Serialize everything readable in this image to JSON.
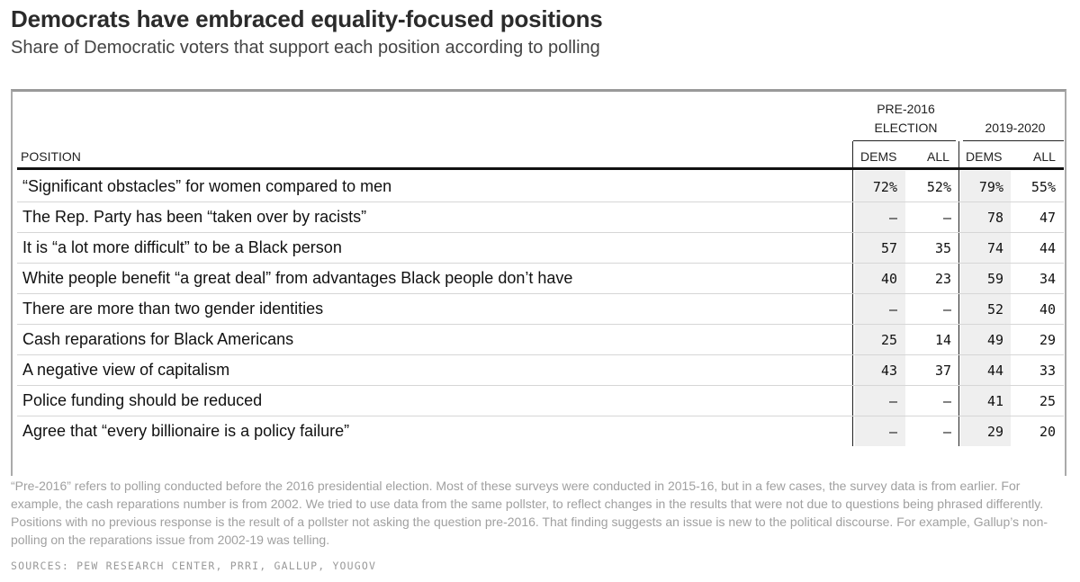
{
  "chart_data": {
    "type": "table",
    "title": "Democrats have embraced equality-focused positions",
    "subtitle": "Share of Democratic voters that support each position according to polling",
    "position_header": "POSITION",
    "groups": [
      {
        "label_line1": "PRE-2016",
        "label_line2": "ELECTION",
        "columns": [
          "DEMS",
          "ALL"
        ]
      },
      {
        "label_line1": "",
        "label_line2": "2019-2020",
        "columns": [
          "DEMS",
          "ALL"
        ]
      }
    ],
    "rows": [
      {
        "position": "“Significant obstacles” for women compared to men",
        "values": [
          "72%",
          "52%",
          "79%",
          "55%"
        ]
      },
      {
        "position": "The Rep. Party has been “taken over by racists”",
        "values": [
          "—",
          "—",
          "78",
          "47"
        ]
      },
      {
        "position": "It is “a lot more difficult” to be a Black person",
        "values": [
          "57",
          "35",
          "74",
          "44"
        ]
      },
      {
        "position": "White people benefit “a great deal” from advantages Black people don’t have",
        "values": [
          "40",
          "23",
          "59",
          "34"
        ]
      },
      {
        "position": "There are more than two gender identities",
        "values": [
          "—",
          "—",
          "52",
          "40"
        ]
      },
      {
        "position": "Cash reparations for Black Americans",
        "values": [
          "25",
          "14",
          "49",
          "29"
        ]
      },
      {
        "position": "A negative view of capitalism",
        "values": [
          "43",
          "37",
          "44",
          "33"
        ]
      },
      {
        "position": "Police funding should be reduced",
        "values": [
          "—",
          "—",
          "41",
          "25"
        ]
      },
      {
        "position": "Agree that “every billionaire is a policy failure”",
        "values": [
          "—",
          "—",
          "29",
          "20"
        ]
      }
    ],
    "note": "“Pre-2016” refers to polling conducted before the 2016 presidential election. Most of these surveys were conducted in 2015-16, but in a few cases, the survey data is from earlier. For example, the cash reparations number is from 2002. We tried to use data from the same pollster, to reflect changes in the results that were not due to questions being phrased differently. Positions with no previous response is the result of a pollster not asking the question pre-2016. That finding suggests an issue is new to the political discourse. For example, Gallup’s non-polling on the reparations issue from 2002-19 was telling.",
    "sources": "SOURCES: PEW RESEARCH CENTER, PRRI, GALLUP, YOUGOV"
  },
  "colors": {
    "shade": "#efefef",
    "rule": "#d6d6d6",
    "note": "#a0a0a0"
  }
}
